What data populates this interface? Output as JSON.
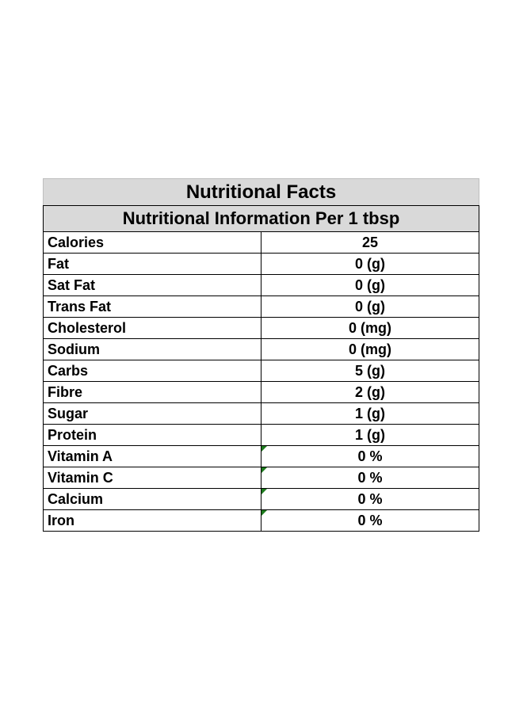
{
  "table": {
    "title": "Nutritional Facts",
    "subtitle": "Nutritional Information Per 1 tbsp",
    "rows": [
      {
        "name": "Calories",
        "value": "25",
        "flag": false
      },
      {
        "name": "Fat",
        "value": "0 (g)",
        "flag": false
      },
      {
        "name": "Sat Fat",
        "value": "0 (g)",
        "flag": false
      },
      {
        "name": "Trans Fat",
        "value": "0 (g)",
        "flag": false
      },
      {
        "name": "Cholesterol",
        "value": "0 (mg)",
        "flag": false
      },
      {
        "name": "Sodium",
        "value": "0 (mg)",
        "flag": false
      },
      {
        "name": "Carbs",
        "value": "5 (g)",
        "flag": false
      },
      {
        "name": "Fibre",
        "value": "2 (g)",
        "flag": false
      },
      {
        "name": "Sugar",
        "value": "1 (g)",
        "flag": false
      },
      {
        "name": "Protein",
        "value": "1 (g)",
        "flag": false
      },
      {
        "name": "Vitamin A",
        "value": "0 %",
        "flag": true
      },
      {
        "name": "Vitamin C",
        "value": "0 %",
        "flag": true
      },
      {
        "name": "Calcium",
        "value": "0 %",
        "flag": true
      },
      {
        "name": "Iron",
        "value": "0 %",
        "flag": true
      }
    ],
    "colors": {
      "header_background": "#d9d9d9",
      "border": "#000000",
      "cell_flag": "#1e7b1e"
    }
  }
}
